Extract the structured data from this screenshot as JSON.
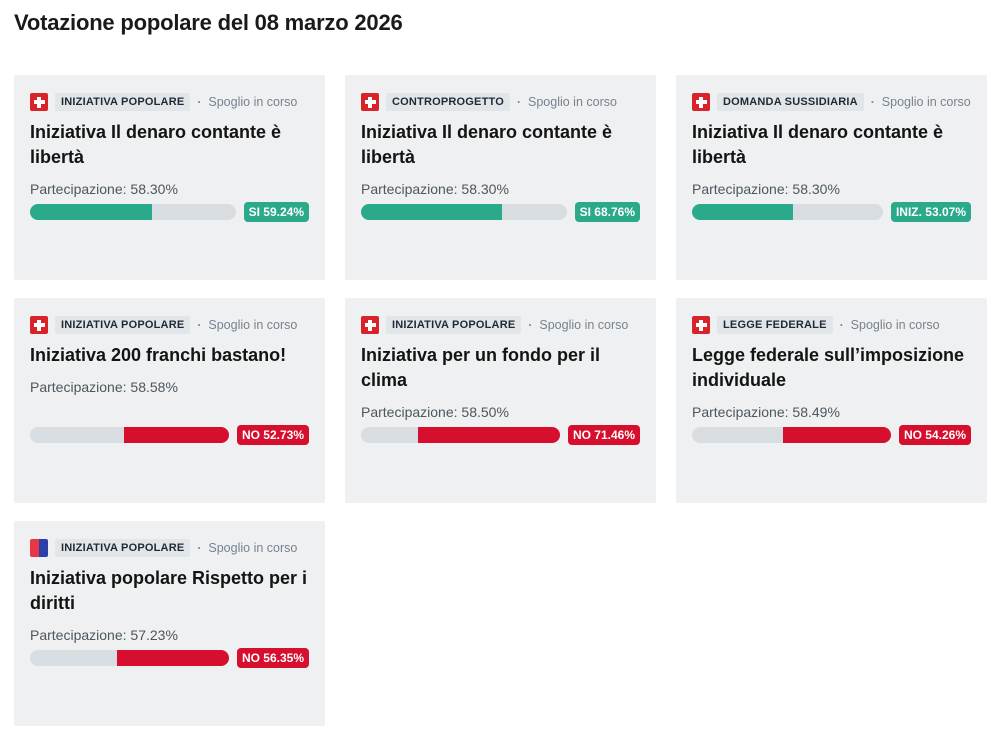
{
  "header": {
    "title": "Votazione popolare del 08 marzo 2026"
  },
  "labels": {
    "participation": "Partecipazione:",
    "meta_separator": "·"
  },
  "colors": {
    "yes_green": "#2aa98b",
    "no_red": "#d50f2d",
    "swiss_red": "#d8232a",
    "ticino_red": "#e63747",
    "ticino_blue": "#2c41a7",
    "card_bg": "#eef0f1",
    "badge_bg": "#e2e6e9",
    "badge_text": "#1e2b36",
    "status_text": "#76838f",
    "track_gray": "#d8dde2",
    "title_color": "#141414",
    "participation_color": "#4c575f"
  },
  "icons": {
    "swiss": "swiss-flag-icon",
    "ticino": "ticino-flag-icon"
  },
  "cards": [
    {
      "flag": "swiss",
      "category": "INIZIATIVA POPOLARE",
      "status": "Spoglio in corso",
      "title": "Iniziativa Il denaro contante è libertà",
      "participation": "58.30%",
      "result": {
        "label": "SI 59.24%",
        "percent": 59.24,
        "outcome": "yes"
      }
    },
    {
      "flag": "swiss",
      "category": "CONTROPROGETTO",
      "status": "Spoglio in corso",
      "title": "Iniziativa Il denaro contante è libertà",
      "participation": "58.30%",
      "result": {
        "label": "SI 68.76%",
        "percent": 68.76,
        "outcome": "yes"
      }
    },
    {
      "flag": "swiss",
      "category": "DOMANDA SUSSIDIARIA",
      "status": "Spoglio in corso",
      "title": "Iniziativa Il denaro contante è libertà",
      "participation": "58.30%",
      "result": {
        "label": "INIZ. 53.07%",
        "percent": 53.07,
        "outcome": "iniz"
      }
    },
    {
      "flag": "swiss",
      "category": "INIZIATIVA POPOLARE",
      "status": "Spoglio in corso",
      "title": "Iniziativa 200 franchi bastano!",
      "participation": "58.58%",
      "result": {
        "label": "NO 52.73%",
        "percent": 52.73,
        "outcome": "no"
      }
    },
    {
      "flag": "swiss",
      "category": "INIZIATIVA POPOLARE",
      "status": "Spoglio in corso",
      "title": "Iniziativa per un fondo per il clima",
      "participation": "58.50%",
      "result": {
        "label": "NO 71.46%",
        "percent": 71.46,
        "outcome": "no"
      }
    },
    {
      "flag": "swiss",
      "category": "LEGGE FEDERALE",
      "status": "Spoglio in corso",
      "title": "Legge federale sull’imposizione individuale",
      "participation": "58.49%",
      "result": {
        "label": "NO 54.26%",
        "percent": 54.26,
        "outcome": "no"
      }
    },
    {
      "flag": "ticino",
      "category": "INIZIATIVA POPOLARE",
      "status": "Spoglio in corso",
      "title": "Iniziativa popolare Rispetto per i diritti",
      "participation": "57.23%",
      "result": {
        "label": "NO 56.35%",
        "percent": 56.35,
        "outcome": "no"
      }
    }
  ]
}
